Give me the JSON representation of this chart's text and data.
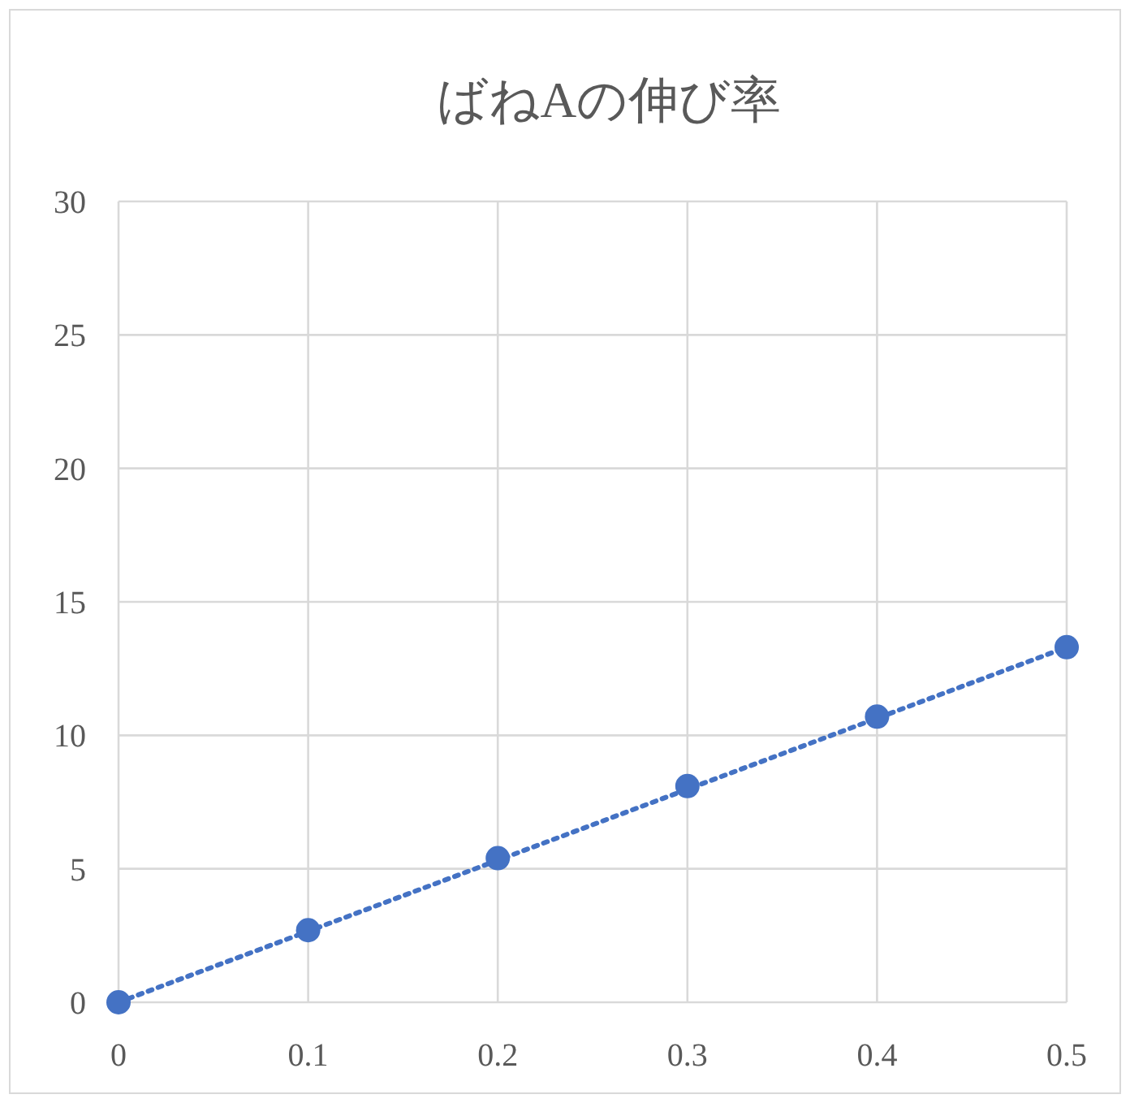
{
  "chart_data": {
    "type": "scatter",
    "title": "ばねAの伸び率",
    "x": [
      0,
      0.1,
      0.2,
      0.3,
      0.4,
      0.5
    ],
    "series": [
      {
        "color": "#4472c4",
        "marker": "circle",
        "values": [
          0,
          2.7,
          5.4,
          8.1,
          10.7,
          13.3
        ]
      },
      {
        "type": "line",
        "x": [
          0,
          0.5
        ],
        "values": [
          0,
          13.3
        ],
        "color": "#4472c4",
        "line_style": "dotted"
      }
    ],
    "xlim": [
      0,
      0.5
    ],
    "ylim": [
      0,
      30
    ],
    "xticks": [
      0,
      0.1,
      0.2,
      0.3,
      0.4,
      0.5
    ],
    "yticks": [
      0,
      5,
      10,
      15,
      20,
      25,
      30
    ],
    "grid": true
  }
}
